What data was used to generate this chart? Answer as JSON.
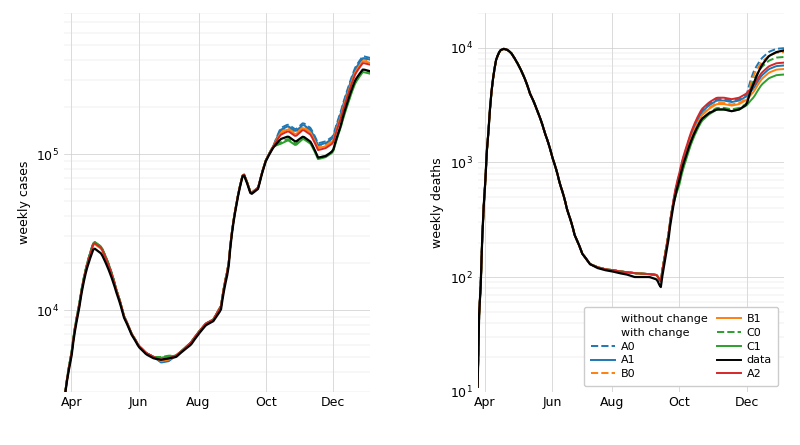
{
  "colors": {
    "blue": "#1f77b4",
    "orange": "#ff7f0e",
    "green": "#2ca02c",
    "red": "#d62728",
    "black": "#000000"
  },
  "cases_ylim": [
    3000,
    800000
  ],
  "deaths_ylim": [
    10,
    20000
  ],
  "xtick_positions": [
    1,
    10,
    18,
    27,
    36
  ],
  "xtick_labels": [
    "Apr",
    "Jun",
    "Aug",
    "Oct",
    "Dec"
  ],
  "ylabel_cases": "weekly cases",
  "ylabel_deaths": "weekly deaths",
  "legend_without_change": "without change",
  "legend_with_change": "with change",
  "legend_data": "data",
  "lw": 1.4
}
